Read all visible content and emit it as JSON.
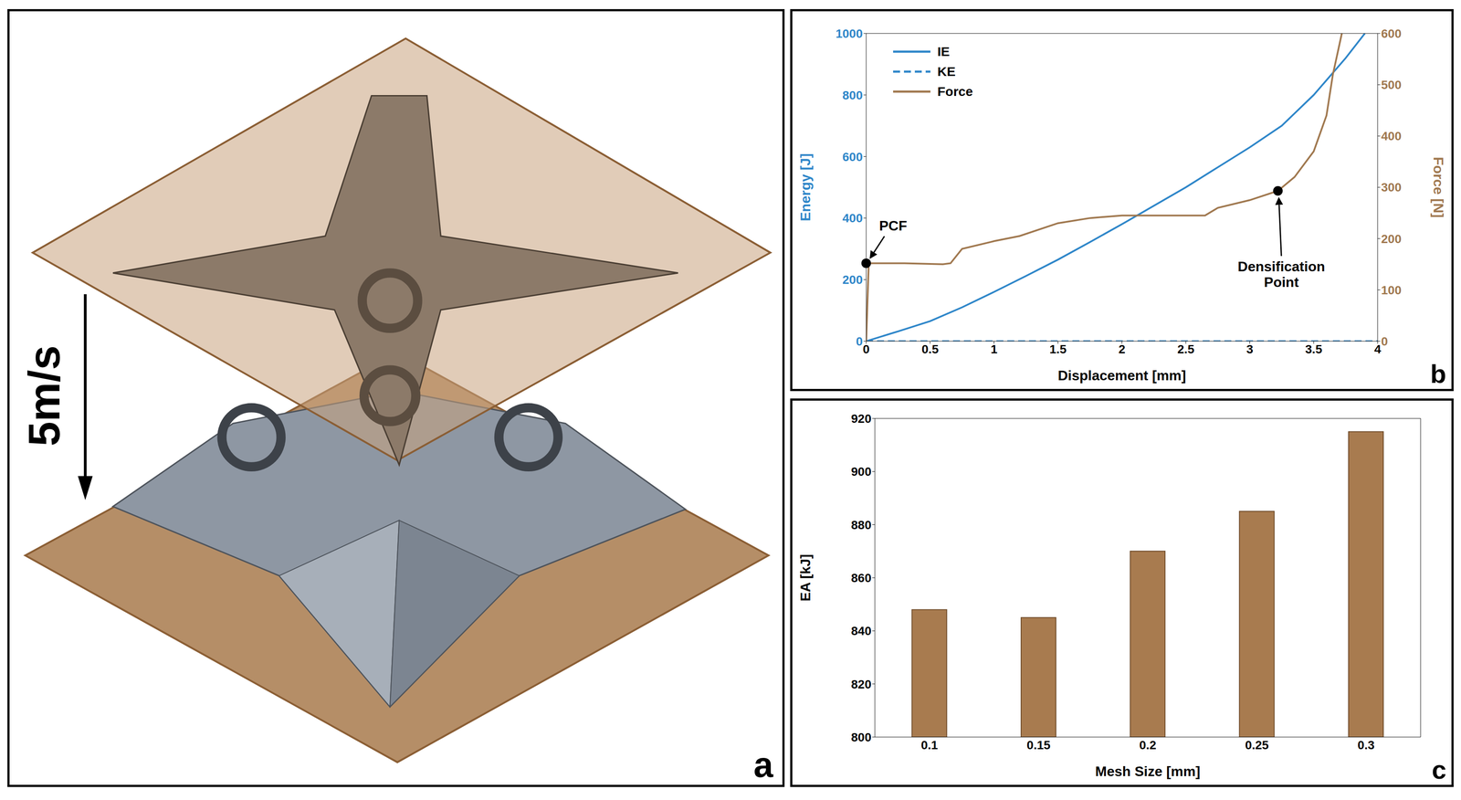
{
  "panel_a": {
    "label": "a",
    "annotation": "5m/s"
  },
  "chart_data": [
    {
      "type": "line",
      "label": "b",
      "xlabel": "Displacement [mm]",
      "ylabel": "Energy [J]",
      "y2label": "Force [N]",
      "xlim": [
        0,
        4
      ],
      "xticks": [
        0,
        0.5,
        1,
        1.5,
        2,
        2.5,
        3,
        3.5,
        4
      ],
      "ylim": [
        0,
        1000
      ],
      "yticks": [
        0,
        200,
        400,
        600,
        800,
        1000
      ],
      "y2lim": [
        0,
        600
      ],
      "y2ticks": [
        0,
        100,
        200,
        300,
        400,
        500,
        600
      ],
      "grid": false,
      "legend": "upper left",
      "series": [
        {
          "name": "IE",
          "color": "#2E86C9",
          "line_style": "solid",
          "x": [
            0,
            0.25,
            0.5,
            0.75,
            1,
            1.25,
            1.5,
            1.75,
            2,
            2.25,
            2.5,
            2.75,
            3,
            3.25,
            3.5,
            3.75,
            3.9
          ],
          "values": [
            0,
            32,
            65,
            110,
            160,
            212,
            265,
            322,
            380,
            440,
            500,
            565,
            630,
            700,
            800,
            920,
            1000
          ]
        },
        {
          "name": "KE",
          "color": "#2E86C9",
          "line_style": "dashed",
          "x": [
            0,
            4
          ],
          "values": [
            0,
            0
          ]
        },
        {
          "name": "Force",
          "color": "#A0784F",
          "line_style": "solid",
          "axis": "y2",
          "x": [
            0,
            0.02,
            0.3,
            0.6,
            0.66,
            0.75,
            1,
            1.2,
            1.5,
            1.75,
            2,
            2.3,
            2.65,
            2.75,
            3,
            3.22,
            3.35,
            3.5,
            3.6,
            3.65,
            3.72
          ],
          "values": [
            0,
            152,
            152,
            150,
            152,
            180,
            195,
            205,
            230,
            240,
            245,
            245,
            245,
            260,
            275,
            293,
            320,
            370,
            440,
            520,
            600
          ]
        }
      ],
      "annotations": [
        {
          "text": "PCF",
          "x": 0,
          "y": 152,
          "axis": "y2"
        },
        {
          "text": "Densification Point",
          "x": 3.22,
          "y": 293,
          "axis": "y2"
        }
      ]
    },
    {
      "type": "bar",
      "label": "c",
      "xlabel": "Mesh Size [mm]",
      "ylabel": "EA [kJ]",
      "categories": [
        "0.1",
        "0.15",
        "0.2",
        "0.25",
        "0.3"
      ],
      "values": [
        848,
        845,
        870,
        885,
        915
      ],
      "color": "#A87B4F",
      "ylim": [
        800,
        920
      ],
      "yticks": [
        800,
        820,
        840,
        860,
        880,
        900,
        920
      ],
      "grid": false
    }
  ]
}
